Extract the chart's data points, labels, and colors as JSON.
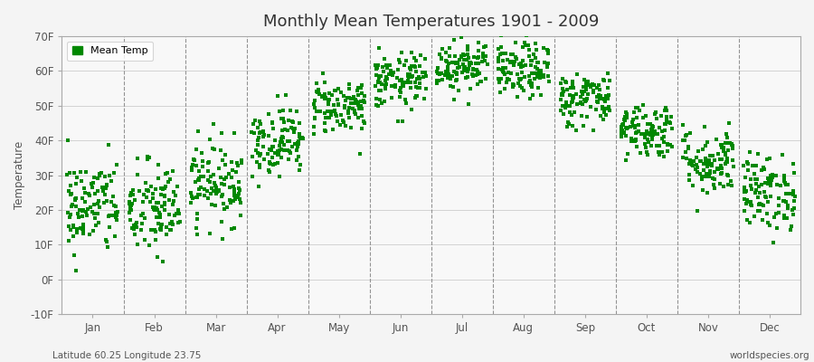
{
  "title": "Monthly Mean Temperatures 1901 - 2009",
  "ylabel": "Temperature",
  "bottom_left": "Latitude 60.25 Longitude 23.75",
  "bottom_right": "worldspecies.org",
  "legend_label": "Mean Temp",
  "marker_color": "#008800",
  "fig_bg_color": "#f4f4f4",
  "plot_bg_color": "#f8f8f8",
  "ylim": [
    -10,
    70
  ],
  "yticks": [
    -10,
    0,
    10,
    20,
    30,
    40,
    50,
    60,
    70
  ],
  "ytick_labels": [
    "-10F",
    "0F",
    "10F",
    "20F",
    "30F",
    "40F",
    "50F",
    "60F",
    "70F"
  ],
  "months": [
    "Jan",
    "Feb",
    "Mar",
    "Apr",
    "May",
    "Jun",
    "Jul",
    "Aug",
    "Sep",
    "Oct",
    "Nov",
    "Dec"
  ],
  "mean_temps_f": [
    21.0,
    20.0,
    28.0,
    40.0,
    50.0,
    57.0,
    62.0,
    60.0,
    52.0,
    43.0,
    34.0,
    25.0
  ],
  "std_temps_f": [
    7.0,
    7.0,
    6.0,
    5.0,
    4.0,
    4.0,
    4.0,
    4.0,
    4.0,
    4.0,
    5.0,
    5.5
  ],
  "n_years": 109,
  "seed": 42
}
